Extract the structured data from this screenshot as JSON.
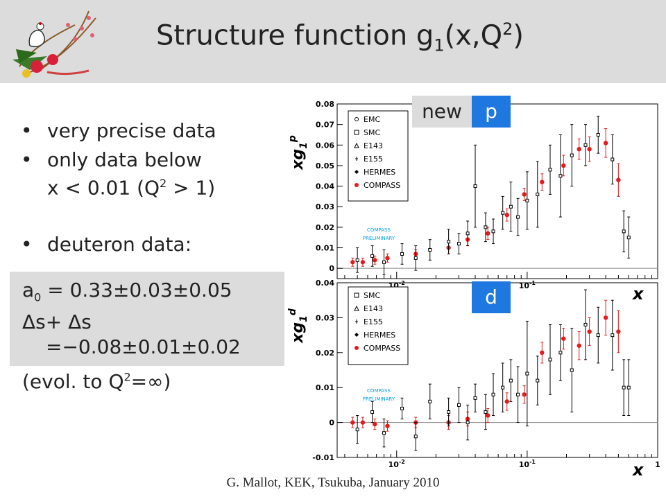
{
  "header": {
    "title_main": "Structure function g",
    "title_sub": "1",
    "title_paren": "(x,Q",
    "title_sup": "2",
    "title_close": ")"
  },
  "bullets": [
    {
      "text": "very precise data"
    },
    {
      "text1": "only data below",
      "text2a": "x < 0.01 (Q",
      "text2sup": "2",
      "text2b": " > 1)"
    },
    {
      "text": "deuteron data:"
    }
  ],
  "stats": {
    "a0_label": "a",
    "a0_sub": "0",
    "a0_value": " =  0.33±0.03±0.05",
    "ds_line1": "Δs+ Δs",
    "ds_line2": "=−0.08±0.01±0.02",
    "evol_a": "(evol. to Q",
    "evol_sup": "2",
    "evol_b": "=∞)"
  },
  "tags": {
    "new": "new",
    "p": "p",
    "d": "d"
  },
  "footer": "G. Mallot, KEK, Tsukuba, January 2010",
  "colors": {
    "header_bg": "#dcdcdc",
    "tag_blue": "#1f78e0",
    "compass_red": "#e41a1c",
    "preliminary_cyan": "#00a0e0"
  },
  "chart_data": [
    {
      "type": "scatter",
      "ylabel": "xg1p",
      "xscale": "log",
      "xlim": [
        0.0035,
        1
      ],
      "ylim": [
        -0.005,
        0.08
      ],
      "yticks": [
        "0",
        "0.01",
        "0.02",
        "0.03",
        "0.04",
        "0.05",
        "0.06",
        "0.07",
        "0.08"
      ],
      "xticks": [
        "10^-2",
        "10^-1"
      ],
      "legend": [
        "EMC",
        "SMC",
        "E143",
        "E155",
        "HERMES",
        "COMPASS"
      ],
      "annotation": [
        "COMPASS",
        "PRELIMINARY"
      ],
      "series": [
        {
          "name": "COMPASS",
          "x": [
            0.0046,
            0.0055,
            0.0068,
            0.0085,
            0.014,
            0.025,
            0.035,
            0.05,
            0.07,
            0.095,
            0.13,
            0.19,
            0.25,
            0.3,
            0.4,
            0.5
          ],
          "y": [
            0.003,
            0.003,
            0.004,
            0.005,
            0.007,
            0.01,
            0.014,
            0.017,
            0.026,
            0.036,
            0.042,
            0.05,
            0.058,
            0.058,
            0.061,
            0.043
          ],
          "err": [
            0.002,
            0.002,
            0.002,
            0.002,
            0.002,
            0.003,
            0.003,
            0.003,
            0.003,
            0.003,
            0.004,
            0.005,
            0.005,
            0.006,
            0.007,
            0.008
          ]
        },
        {
          "name": "other",
          "x": [
            0.005,
            0.0065,
            0.008,
            0.011,
            0.014,
            0.018,
            0.025,
            0.03,
            0.035,
            0.04,
            0.048,
            0.055,
            0.065,
            0.075,
            0.085,
            0.1,
            0.12,
            0.15,
            0.18,
            0.22,
            0.28,
            0.35,
            0.45,
            0.55,
            0.6
          ],
          "y": [
            0.004,
            0.006,
            0.003,
            0.007,
            0.005,
            0.009,
            0.013,
            0.012,
            0.017,
            0.04,
            0.02,
            0.018,
            0.027,
            0.03,
            0.025,
            0.033,
            0.036,
            0.048,
            0.045,
            0.055,
            0.06,
            0.065,
            0.053,
            0.018,
            0.015
          ],
          "err": [
            0.006,
            0.005,
            0.006,
            0.005,
            0.006,
            0.005,
            0.006,
            0.005,
            0.006,
            0.02,
            0.007,
            0.006,
            0.008,
            0.012,
            0.009,
            0.014,
            0.016,
            0.012,
            0.02,
            0.015,
            0.01,
            0.009,
            0.012,
            0.01,
            0.01
          ]
        }
      ]
    },
    {
      "type": "scatter",
      "ylabel": "xg1d",
      "xscale": "log",
      "xlim": [
        0.0035,
        1
      ],
      "ylim": [
        -0.01,
        0.04
      ],
      "yticks": [
        "-0.01",
        "0",
        "0.01",
        "0.02",
        "0.03",
        "0.04"
      ],
      "xticks": [
        "10^-2",
        "10^-1",
        "1"
      ],
      "xlabel": "x",
      "legend": [
        "SMC",
        "E143",
        "E155",
        "HERMES",
        "COMPASS"
      ],
      "annotation": [
        "COMPASS",
        "PRELIMINARY"
      ],
      "series": [
        {
          "name": "COMPASS",
          "x": [
            0.0046,
            0.0055,
            0.0068,
            0.0085,
            0.014,
            0.025,
            0.035,
            0.05,
            0.07,
            0.095,
            0.13,
            0.19,
            0.25,
            0.3,
            0.4,
            0.5
          ],
          "y": [
            0.0,
            0.0,
            -0.0005,
            -0.001,
            0.0,
            0.0,
            0.001,
            0.002,
            0.006,
            0.008,
            0.02,
            0.024,
            0.022,
            0.026,
            0.03,
            0.026
          ],
          "err": [
            0.0015,
            0.0015,
            0.0015,
            0.0015,
            0.0015,
            0.002,
            0.002,
            0.002,
            0.0025,
            0.0025,
            0.003,
            0.003,
            0.004,
            0.004,
            0.005,
            0.006
          ]
        },
        {
          "name": "other",
          "x": [
            0.005,
            0.0065,
            0.008,
            0.011,
            0.014,
            0.018,
            0.025,
            0.03,
            0.035,
            0.04,
            0.048,
            0.055,
            0.065,
            0.075,
            0.085,
            0.1,
            0.12,
            0.15,
            0.18,
            0.22,
            0.28,
            0.35,
            0.45,
            0.55,
            0.6
          ],
          "y": [
            -0.002,
            0.003,
            -0.003,
            0.004,
            -0.004,
            0.006,
            0.003,
            0.005,
            0.0,
            0.007,
            0.003,
            0.008,
            0.01,
            0.012,
            0.008,
            0.014,
            0.012,
            0.018,
            0.02,
            0.015,
            0.028,
            0.025,
            0.025,
            0.01,
            0.01
          ],
          "err": [
            0.004,
            0.003,
            0.004,
            0.003,
            0.004,
            0.005,
            0.004,
            0.005,
            0.005,
            0.004,
            0.005,
            0.006,
            0.007,
            0.006,
            0.008,
            0.015,
            0.007,
            0.01,
            0.008,
            0.012,
            0.01,
            0.008,
            0.01,
            0.008,
            0.008
          ]
        }
      ]
    }
  ]
}
